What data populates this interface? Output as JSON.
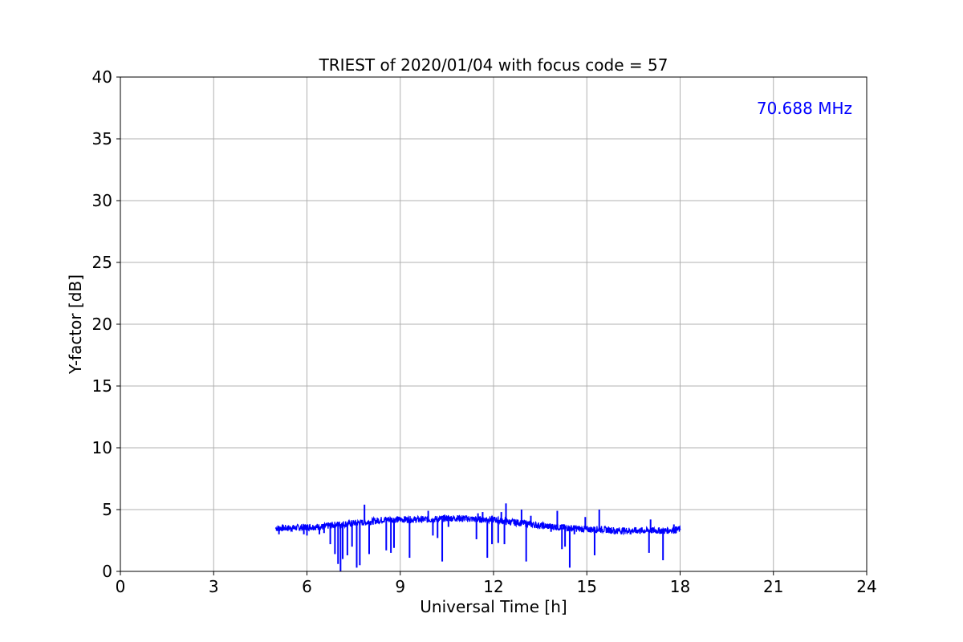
{
  "chart_data": {
    "type": "line",
    "title": "TRIEST of 2020/01/04 with focus code = 57",
    "xlabel": "Universal Time [h]",
    "ylabel": "Y-factor [dB]",
    "xlim": [
      0,
      24
    ],
    "ylim": [
      0,
      40
    ],
    "xticks": [
      0,
      3,
      6,
      9,
      12,
      15,
      18,
      21,
      24
    ],
    "yticks": [
      0,
      5,
      10,
      15,
      20,
      25,
      30,
      35,
      40
    ],
    "grid": true,
    "annotation": {
      "text": "70.688 MHz",
      "position": "top-right",
      "color": "#0000ff"
    },
    "series": [
      {
        "color": "#0000ff",
        "x": [
          5.0,
          5.5,
          6.0,
          6.5,
          6.7,
          7.0,
          7.5,
          8.0,
          8.5,
          9.0,
          9.5,
          10.0,
          10.5,
          11.0,
          11.5,
          12.0,
          12.5,
          13.0,
          13.5,
          14.0,
          14.5,
          15.0,
          15.5,
          16.0,
          16.5,
          17.0,
          17.5,
          18.0
        ],
        "y": [
          3.5,
          3.5,
          3.6,
          3.6,
          3.7,
          3.8,
          3.9,
          4.0,
          4.2,
          4.2,
          4.2,
          4.2,
          4.3,
          4.3,
          4.2,
          4.2,
          4.0,
          3.9,
          3.7,
          3.6,
          3.5,
          3.4,
          3.4,
          3.3,
          3.3,
          3.3,
          3.3,
          3.4
        ],
        "spikes": [
          {
            "x": 5.1,
            "y": 3.0
          },
          {
            "x": 5.9,
            "y": 3.0
          },
          {
            "x": 6.0,
            "y": 2.9
          },
          {
            "x": 6.4,
            "y": 3.0
          },
          {
            "x": 6.55,
            "y": 3.1
          },
          {
            "x": 6.75,
            "y": 2.2
          },
          {
            "x": 6.9,
            "y": 1.4
          },
          {
            "x": 7.0,
            "y": 0.6
          },
          {
            "x": 7.08,
            "y": 0.0
          },
          {
            "x": 7.15,
            "y": 1.0
          },
          {
            "x": 7.3,
            "y": 1.3
          },
          {
            "x": 7.45,
            "y": 2.0
          },
          {
            "x": 7.6,
            "y": 0.3
          },
          {
            "x": 7.7,
            "y": 0.5
          },
          {
            "x": 7.85,
            "y": 5.4
          },
          {
            "x": 8.0,
            "y": 1.4
          },
          {
            "x": 8.55,
            "y": 1.7
          },
          {
            "x": 8.7,
            "y": 1.5
          },
          {
            "x": 8.8,
            "y": 1.9
          },
          {
            "x": 9.3,
            "y": 1.1
          },
          {
            "x": 9.9,
            "y": 4.9
          },
          {
            "x": 10.05,
            "y": 2.9
          },
          {
            "x": 10.2,
            "y": 2.7
          },
          {
            "x": 10.35,
            "y": 0.8
          },
          {
            "x": 10.55,
            "y": 3.6
          },
          {
            "x": 11.0,
            "y": 4.0
          },
          {
            "x": 11.45,
            "y": 2.6
          },
          {
            "x": 11.5,
            "y": 4.7
          },
          {
            "x": 11.65,
            "y": 4.8
          },
          {
            "x": 11.8,
            "y": 1.1
          },
          {
            "x": 11.95,
            "y": 2.2
          },
          {
            "x": 12.15,
            "y": 2.3
          },
          {
            "x": 12.25,
            "y": 4.8
          },
          {
            "x": 12.35,
            "y": 2.2
          },
          {
            "x": 12.4,
            "y": 5.5
          },
          {
            "x": 12.9,
            "y": 5.0
          },
          {
            "x": 13.05,
            "y": 0.8
          },
          {
            "x": 13.2,
            "y": 4.5
          },
          {
            "x": 13.85,
            "y": 3.2
          },
          {
            "x": 14.05,
            "y": 4.9
          },
          {
            "x": 14.2,
            "y": 1.8
          },
          {
            "x": 14.3,
            "y": 2.0
          },
          {
            "x": 14.45,
            "y": 0.3
          },
          {
            "x": 14.6,
            "y": 3.0
          },
          {
            "x": 14.95,
            "y": 4.4
          },
          {
            "x": 15.25,
            "y": 1.3
          },
          {
            "x": 15.4,
            "y": 5.0
          },
          {
            "x": 15.9,
            "y": 3.0
          },
          {
            "x": 16.4,
            "y": 3.0
          },
          {
            "x": 16.6,
            "y": 3.1
          },
          {
            "x": 17.0,
            "y": 1.5
          },
          {
            "x": 17.05,
            "y": 4.2
          },
          {
            "x": 17.45,
            "y": 0.9
          },
          {
            "x": 17.8,
            "y": 3.8
          }
        ]
      }
    ]
  }
}
